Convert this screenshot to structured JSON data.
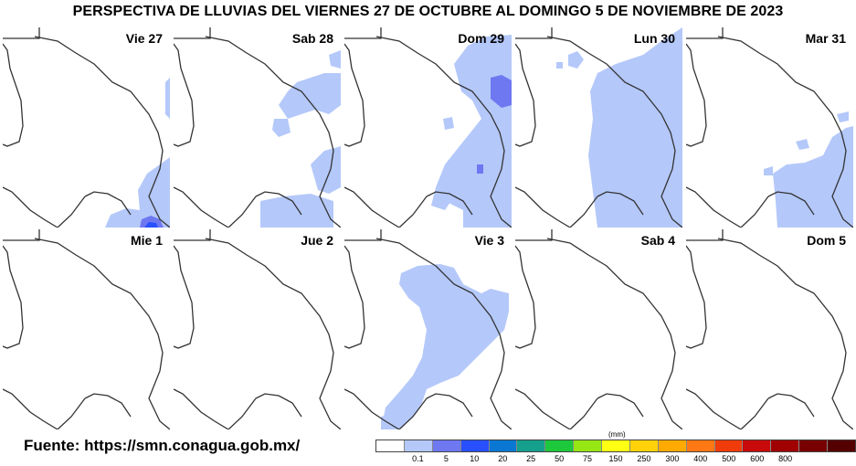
{
  "title": "PERSPECTIVA DE LLUVIAS DEL VIERNES 27 DE OCTUBRE AL DOMINGO 5 DE NOVIEMBRE DE 2023",
  "source": "Fuente: https://smn.conagua.gob.mx/",
  "panels": [
    {
      "label": "Vie 27"
    },
    {
      "label": "Sab 28"
    },
    {
      "label": "Dom 29"
    },
    {
      "label": "Lun 30"
    },
    {
      "label": "Mar 31"
    },
    {
      "label": "Mie 1"
    },
    {
      "label": "Jue 2"
    },
    {
      "label": "Vie 3"
    },
    {
      "label": "Sab 4"
    },
    {
      "label": "Dom 5"
    }
  ],
  "legend": {
    "units": "(mm)",
    "ticks": [
      "0.1",
      "5",
      "10",
      "20",
      "25",
      "50",
      "75",
      "150",
      "250",
      "300",
      "400",
      "500",
      "600",
      "800"
    ],
    "colors": [
      "#ffffff",
      "#b4c8fa",
      "#6e78f0",
      "#2850ff",
      "#0a78d2",
      "#14a08c",
      "#1ec83c",
      "#96e614",
      "#ffff14",
      "#ffd20a",
      "#ffaa00",
      "#ff7814",
      "#f03c0a",
      "#c80a0a",
      "#a00000",
      "#780000",
      "#550000"
    ]
  }
}
